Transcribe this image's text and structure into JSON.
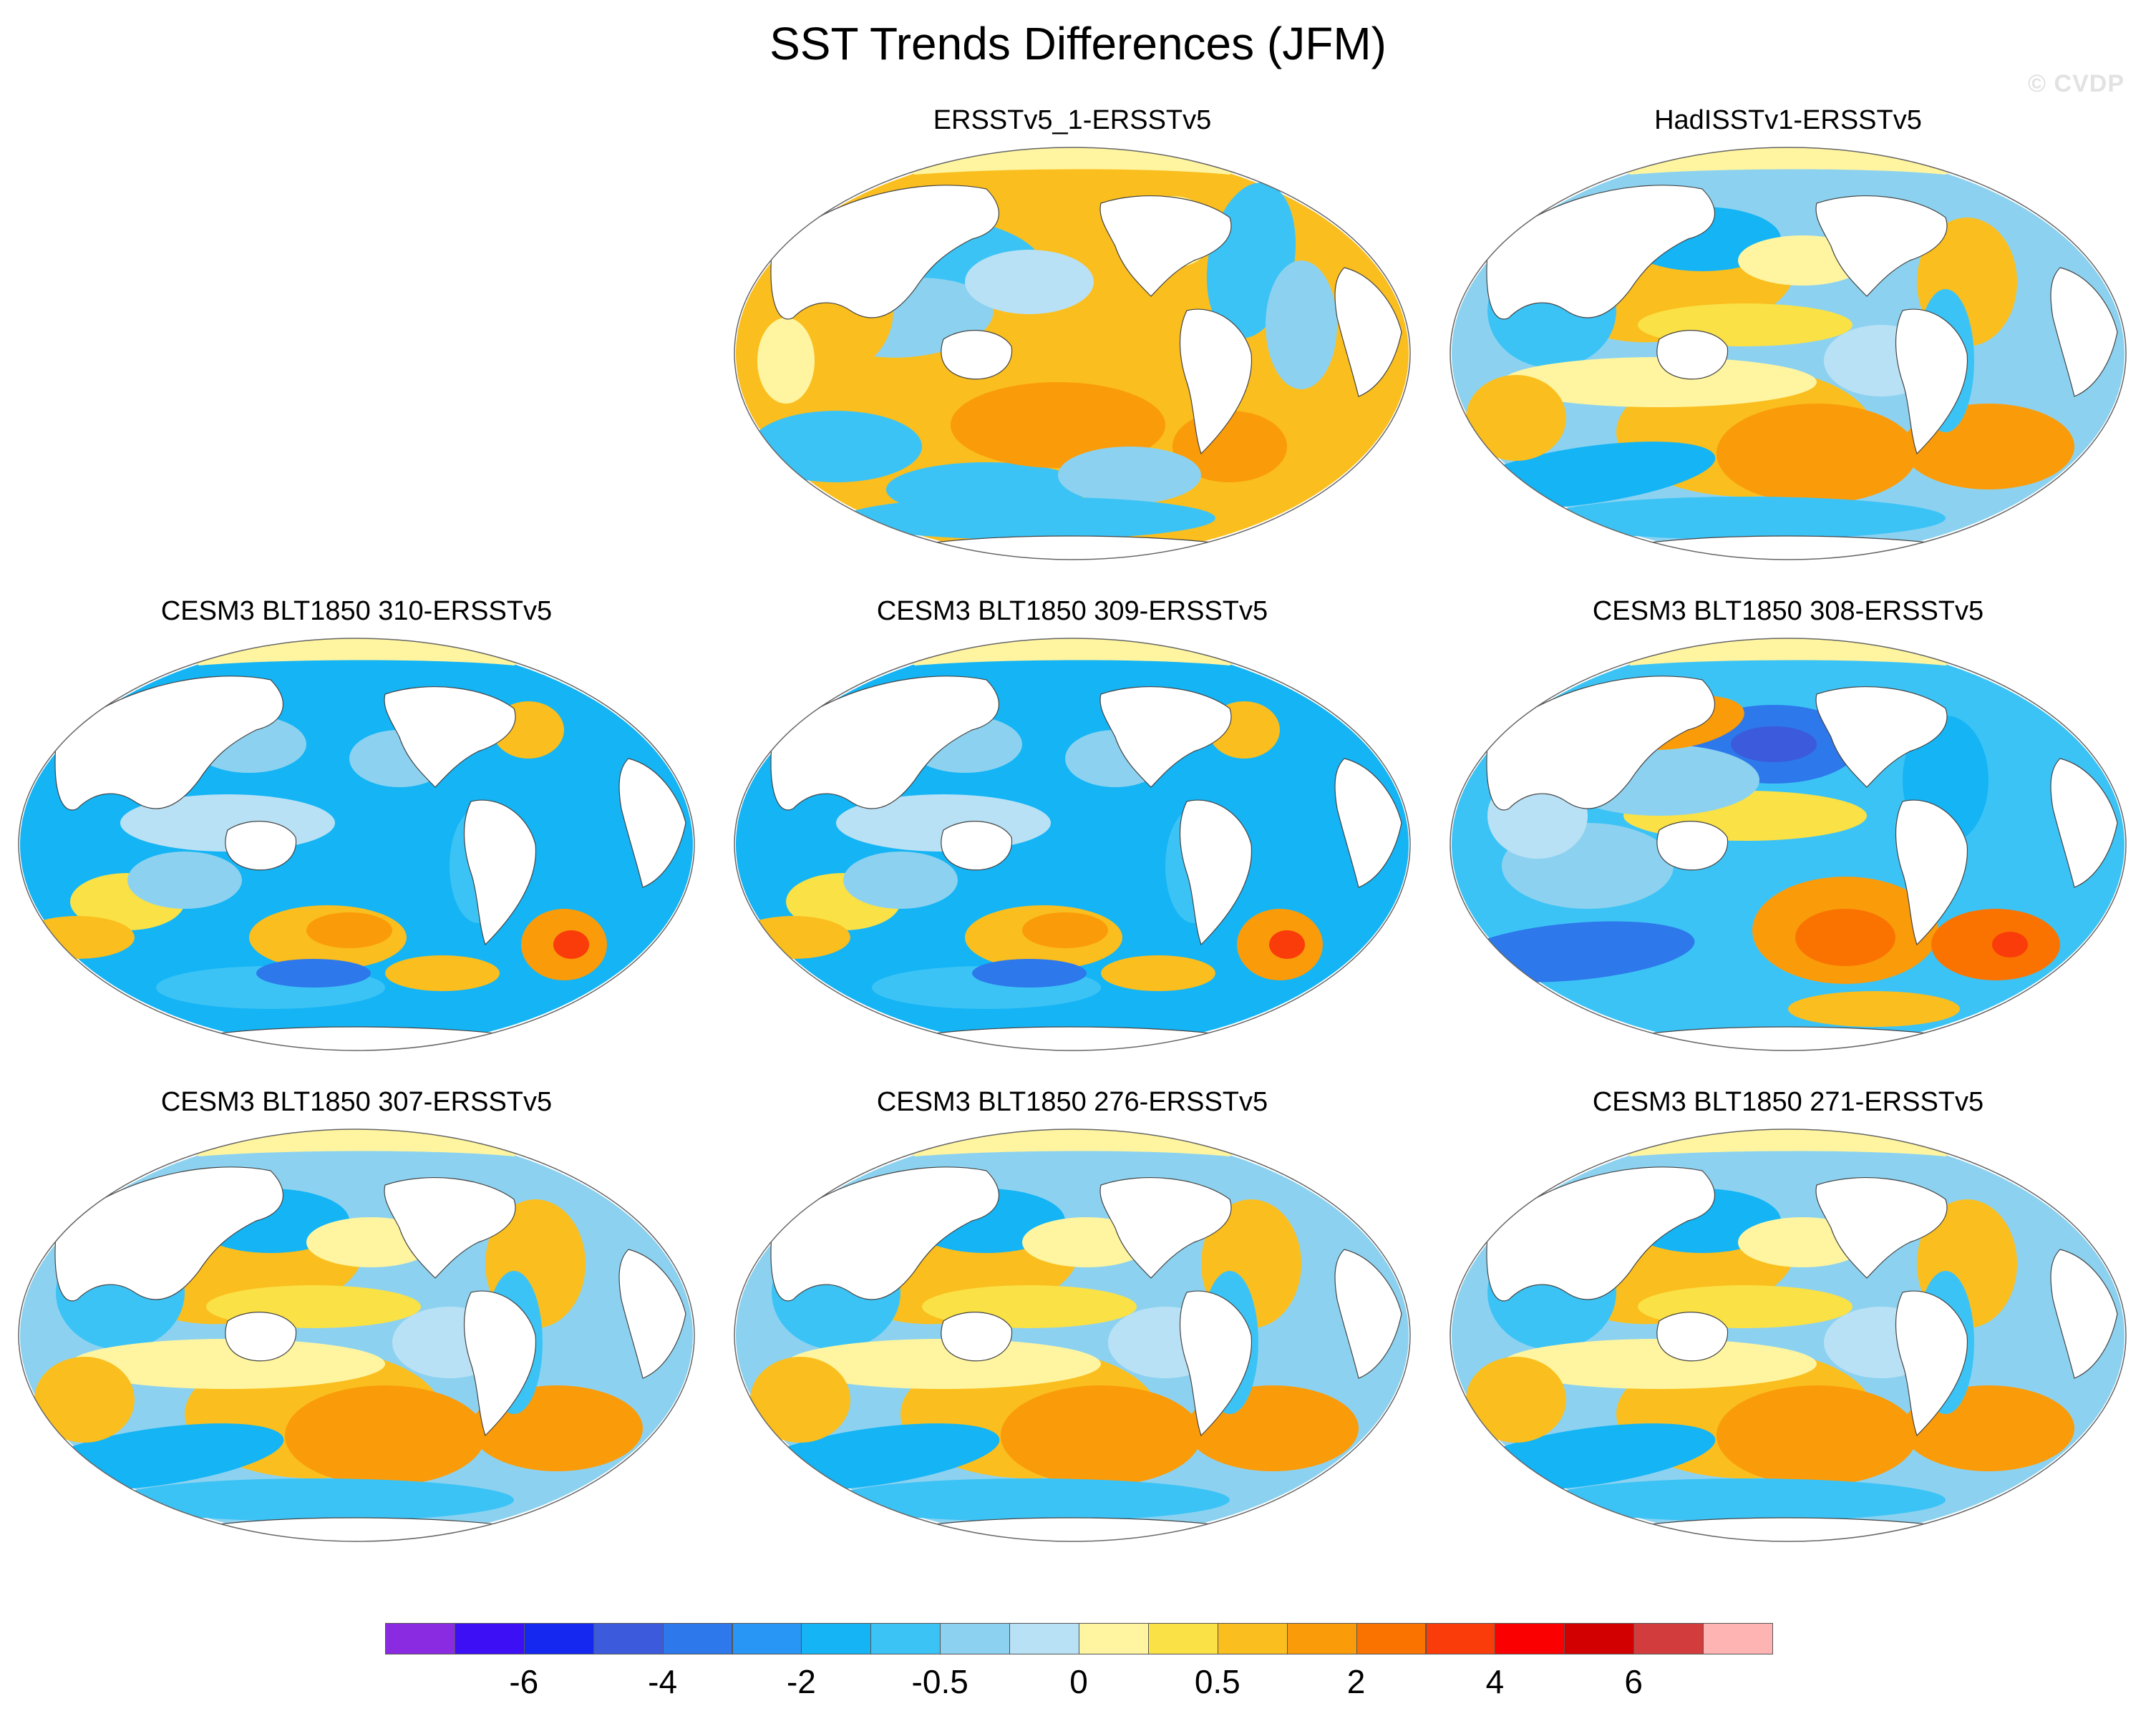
{
  "figure": {
    "title": "SST Trends Differences (JFM)",
    "watermark": "© CVDP"
  },
  "panels": [
    {
      "id": "p1",
      "label": "ERSSTv5_1-ERSSTv5",
      "theme": "warm"
    },
    {
      "id": "p2",
      "label": "HadISSTv1-ERSSTv5",
      "theme": "mixed"
    },
    {
      "id": "p3",
      "label": "CESM3 BLT1850 310-ERSSTv5",
      "theme": "cool"
    },
    {
      "id": "p4",
      "label": "CESM3 BLT1850 309-ERSSTv5",
      "theme": "cool"
    },
    {
      "id": "p5",
      "label": "CESM3 BLT1850 308-ERSSTv5",
      "theme": "cool2"
    },
    {
      "id": "p6",
      "label": "CESM3 BLT1850 307-ERSSTv5",
      "theme": "mixed"
    },
    {
      "id": "p7",
      "label": "CESM3 BLT1850 276-ERSSTv5",
      "theme": "mixed"
    },
    {
      "id": "p8",
      "label": "CESM3 BLT1850 271-ERSSTv5",
      "theme": "mixed"
    }
  ],
  "colorbar": {
    "colors": [
      "#8a2be2",
      "#3c0ff5",
      "#1428f0",
      "#3c5adc",
      "#2d78eb",
      "#2896f5",
      "#14b4f5",
      "#3cc3f5",
      "#8cd2f0",
      "#b9e1f5",
      "#fff5a0",
      "#fae146",
      "#fabe1e",
      "#fa9b0a",
      "#fa7300",
      "#fa3c0a",
      "#fa0000",
      "#d20000",
      "#d23c3c",
      "#ffb4b4"
    ],
    "tick_labels": [
      "-6",
      "-4",
      "-2",
      "-0.5",
      "0",
      "0.5",
      "2",
      "4",
      "6"
    ]
  }
}
